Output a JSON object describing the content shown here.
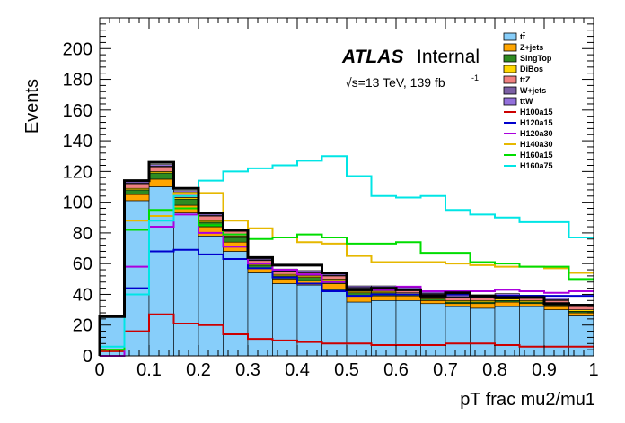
{
  "chart_data": {
    "type": "histogram",
    "xlabel": "pT frac mu2/mu1",
    "ylabel": "Events",
    "xlim": [
      0,
      1
    ],
    "ylim": [
      0,
      220
    ],
    "x_ticks": [
      "0",
      "0.1",
      "0.2",
      "0.3",
      "0.4",
      "0.5",
      "0.6",
      "0.7",
      "0.8",
      "0.9",
      "1"
    ],
    "y_ticks": [
      "0",
      "20",
      "40",
      "60",
      "80",
      "100",
      "120",
      "140",
      "160",
      "180",
      "200"
    ],
    "bin_edges": [
      0,
      0.05,
      0.1,
      0.15,
      0.2,
      0.25,
      0.3,
      0.35,
      0.4,
      0.45,
      0.5,
      0.55,
      0.6,
      0.65,
      0.7,
      0.75,
      0.8,
      0.85,
      0.9,
      0.95,
      1.0
    ],
    "atlas_label": "ATLAS",
    "atlas_status": "Internal",
    "lumi_prefix": "√s=13 TeV, 139 fb",
    "lumi_exp": "-1",
    "legend_position": "top-right",
    "stack": [
      {
        "name": "tt̄",
        "color": "#87cefa",
        "values": [
          25.5,
          101,
          110,
          93,
          78,
          68,
          54,
          47,
          46,
          43,
          35,
          36,
          36,
          34,
          32,
          31,
          32,
          32,
          30,
          26
        ]
      },
      {
        "name": "Z+jets",
        "color": "#ffa500",
        "values": [
          0,
          4,
          5,
          5,
          6,
          6,
          3,
          3,
          3,
          4,
          4,
          3,
          3,
          2,
          2,
          3,
          3,
          2,
          2,
          2
        ]
      },
      {
        "name": "SingTop",
        "color": "#2e8b22",
        "values": [
          0,
          3,
          4,
          4,
          3,
          3,
          2,
          2,
          2,
          2,
          2,
          2,
          1,
          1,
          1,
          1,
          1,
          1,
          1,
          1
        ]
      },
      {
        "name": "DiBos",
        "color": "#ffd700",
        "values": [
          0,
          1,
          1,
          1,
          1,
          1,
          1,
          1,
          1,
          1,
          1,
          1,
          1,
          1,
          1,
          1,
          1,
          1,
          1,
          1
        ]
      },
      {
        "name": "ttZ",
        "color": "#f08080",
        "values": [
          0,
          3,
          3,
          3,
          3,
          3,
          2,
          2,
          2,
          2,
          2,
          2,
          2,
          2,
          2,
          2,
          2,
          2,
          2,
          2
        ]
      },
      {
        "name": "W+jets",
        "color": "#7b5fa5",
        "values": [
          0,
          0.5,
          0.5,
          0.5,
          0.5,
          0.5,
          0.5,
          0.5,
          0.5,
          0.5,
          0.5,
          0.5,
          0.5,
          0.5,
          0.5,
          0.5,
          0.5,
          0.5,
          0.5,
          0.5
        ]
      },
      {
        "name": "ttW",
        "color": "#9370db",
        "values": [
          0,
          1,
          1,
          1,
          1,
          1,
          1,
          1,
          1,
          1,
          1,
          1,
          1,
          1,
          1,
          1,
          1,
          1,
          1,
          1
        ]
      }
    ],
    "signals": [
      {
        "name": "H100a15",
        "color": "#cc0000",
        "values": [
          3,
          16,
          27,
          21,
          20,
          14,
          11,
          10,
          9,
          8,
          8,
          7,
          7,
          7,
          8,
          8,
          7,
          6,
          6,
          6
        ]
      },
      {
        "name": "H120a15",
        "color": "#0000cc",
        "values": [
          0,
          44,
          68,
          69,
          66,
          63,
          57,
          51,
          47,
          42,
          39,
          40,
          40,
          39,
          40,
          39,
          39,
          39,
          39,
          39
        ]
      },
      {
        "name": "H120a30",
        "color": "#aa00dd",
        "values": [
          0,
          58,
          84,
          92,
          80,
          71,
          60,
          56,
          53,
          48,
          43,
          43,
          45,
          42,
          42,
          42,
          43,
          42,
          41,
          42
        ]
      },
      {
        "name": "H140a30",
        "color": "#e6b800",
        "values": [
          4,
          88,
          91,
          106,
          106,
          88,
          83,
          77,
          74,
          73,
          65,
          61,
          61,
          61,
          60,
          59,
          58,
          58,
          57,
          54
        ]
      },
      {
        "name": "H160a15",
        "color": "#00dd00",
        "values": [
          4,
          82,
          95,
          96,
          85,
          79,
          76,
          77,
          79,
          77,
          73,
          73,
          74,
          67,
          67,
          61,
          60,
          58,
          58,
          50
        ]
      },
      {
        "name": "H160a75",
        "color": "#00e5e5",
        "values": [
          6,
          40,
          88,
          104,
          114,
          120,
          122,
          124,
          127,
          130,
          117,
          104,
          103,
          104,
          95,
          92,
          90,
          87,
          87,
          77
        ]
      }
    ],
    "total_outline": {
      "color": "#000000",
      "values": [
        25.5,
        114,
        126,
        109,
        93,
        82,
        64,
        59,
        59,
        54,
        43,
        44,
        43,
        39,
        41,
        39,
        38,
        38,
        34,
        33
      ]
    }
  }
}
